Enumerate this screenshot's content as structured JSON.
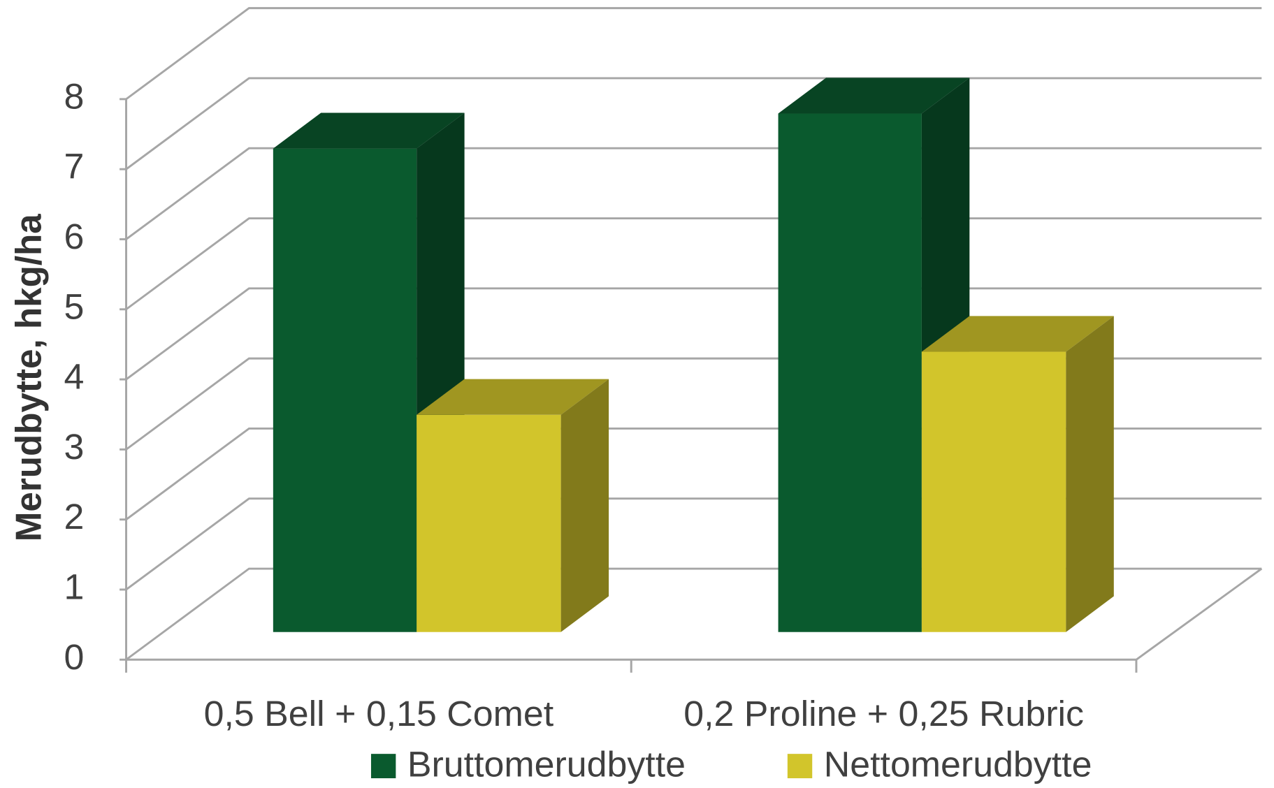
{
  "chart_data": {
    "type": "bar3d",
    "y_axis_label": "Merudbytte, hkg/ha",
    "categories": [
      "0,5 Bell + 0,15 Comet",
      "0,2 Proline + 0,25 Rubric"
    ],
    "series": [
      {
        "name": "Bruttomerudbytte",
        "color": "#0a5a2e",
        "values": [
          6.9,
          7.4
        ]
      },
      {
        "name": "Nettomerudbytte",
        "color": "#d2c52b",
        "values": [
          3.1,
          4.0
        ]
      }
    ],
    "ylim": [
      0,
      8
    ],
    "yticks": [
      0,
      1,
      2,
      3,
      4,
      5,
      6,
      7,
      8
    ],
    "grid": true,
    "legend": "bottom"
  }
}
